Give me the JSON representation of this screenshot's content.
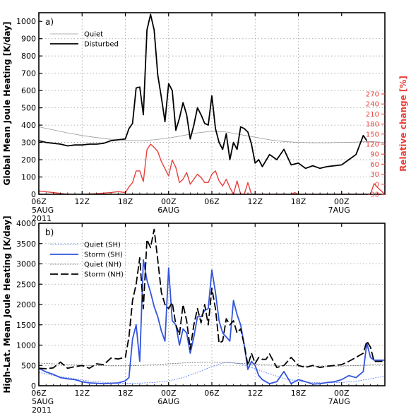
{
  "chart_data": [
    {
      "type": "line",
      "panel_label": "a)",
      "ylabel": "Global Mean Joule Heating [K/day]",
      "ylabel_right": "Relative change [%]",
      "x_tick_labels": [
        "06Z\n5AUG\n2011",
        "12Z",
        "18Z",
        "00Z\n6AUG",
        "06Z",
        "12Z",
        "18Z",
        "00Z\n7AUG"
      ],
      "x_range_hours": [
        6,
        54
      ],
      "ylim": [
        0,
        1050
      ],
      "y_ticks": [
        0,
        100,
        200,
        300,
        400,
        500,
        600,
        700,
        800,
        900,
        1000
      ],
      "right_ylim": [
        -30,
        270
      ],
      "right_ticks": [
        -30,
        0,
        30,
        60,
        90,
        120,
        150,
        180,
        210,
        240,
        270
      ],
      "grid": true,
      "legend_position": "top-left",
      "colors": {
        "quiet": "#888888",
        "disturbed": "#000000",
        "relative_change": "#e8403a"
      },
      "series": [
        {
          "name": "Quiet",
          "x": [
            6,
            8,
            10,
            12,
            14,
            16,
            18,
            20,
            22,
            24,
            26,
            28,
            30,
            32,
            34,
            36,
            38,
            40,
            42,
            44,
            46,
            48,
            50,
            52,
            54
          ],
          "y": [
            390,
            372,
            355,
            340,
            328,
            318,
            312,
            310,
            315,
            325,
            340,
            355,
            365,
            360,
            345,
            330,
            315,
            305,
            300,
            298,
            298,
            300,
            302,
            305,
            300
          ]
        },
        {
          "name": "Disturbed",
          "x": [
            6,
            7,
            8,
            9,
            10,
            11,
            12,
            13,
            14,
            15,
            16,
            17,
            18,
            18.5,
            19,
            19.5,
            20,
            20.5,
            21,
            21.5,
            22,
            22.5,
            23,
            23.5,
            24,
            24.5,
            25,
            25.5,
            26,
            26.5,
            27,
            27.5,
            28,
            28.5,
            29,
            29.5,
            30,
            30.5,
            31,
            31.5,
            32,
            32.5,
            33,
            33.5,
            34,
            34.5,
            35,
            35.5,
            36,
            36.5,
            37,
            38,
            39,
            40,
            41,
            42,
            43,
            44,
            45,
            46,
            47,
            48,
            49,
            50,
            51,
            51.5,
            52,
            52.5,
            53,
            53.5,
            54
          ],
          "y": [
            310,
            300,
            295,
            290,
            280,
            285,
            285,
            290,
            290,
            295,
            310,
            315,
            320,
            380,
            410,
            615,
            620,
            460,
            950,
            1040,
            950,
            690,
            560,
            420,
            640,
            600,
            370,
            440,
            530,
            460,
            320,
            400,
            500,
            460,
            410,
            400,
            570,
            380,
            300,
            260,
            350,
            200,
            300,
            260,
            390,
            380,
            360,
            290,
            180,
            200,
            160,
            230,
            200,
            260,
            170,
            180,
            150,
            165,
            150,
            160,
            165,
            170,
            200,
            230,
            340,
            310,
            270,
            0,
            0,
            0,
            0
          ],
          "note_trim": 66
        },
        {
          "name": "Relative change",
          "x": [
            6,
            8,
            10,
            12,
            14,
            16,
            17,
            18,
            18.5,
            19,
            19.5,
            20,
            20.5,
            21,
            21.5,
            22,
            22.5,
            23,
            24,
            24.5,
            25,
            25.5,
            26,
            26.5,
            27,
            27.5,
            28,
            28.5,
            29,
            29.5,
            30,
            30.5,
            31,
            31.5,
            32,
            32.5,
            33,
            33.5,
            34,
            34.5,
            35,
            35.5,
            36,
            40,
            40.5,
            41,
            41.5,
            42,
            50,
            52,
            52.5,
            53,
            53.5,
            54
          ],
          "y": [
            -20,
            -25,
            -30,
            -30,
            -28,
            -25,
            -22,
            -25,
            -8,
            5,
            40,
            40,
            8,
            103,
            120,
            110,
            98,
            68,
            25,
            72,
            50,
            5,
            15,
            35,
            0,
            15,
            30,
            20,
            5,
            5,
            30,
            40,
            10,
            -5,
            15,
            -10,
            -30,
            10,
            -30,
            -30,
            5,
            -30,
            -30,
            -30,
            -30,
            -30,
            -25,
            -30,
            -30,
            -30,
            2,
            -10,
            -20,
            -30
          ]
        }
      ]
    },
    {
      "type": "line",
      "panel_label": "b)",
      "ylabel": "High-Lat. Mean Joule Heating [K/day]",
      "x_tick_labels": [
        "06Z\n5AUG\n2011",
        "12Z",
        "18Z",
        "00Z\n6AUG",
        "06Z",
        "12Z",
        "18Z",
        "00Z\n7AUG"
      ],
      "x_range_hours": [
        6,
        54
      ],
      "ylim": [
        0,
        4000
      ],
      "y_ticks": [
        0,
        500,
        1000,
        1500,
        2000,
        2500,
        3000,
        3500,
        4000
      ],
      "grid": true,
      "legend_position": "top-left",
      "colors": {
        "quiet_sh": "#3355dd",
        "storm_sh": "#3355dd",
        "quiet_nh": "#666666",
        "storm_nh": "#000000"
      },
      "series": [
        {
          "name": "Quiet (SH)",
          "x": [
            6,
            8,
            10,
            12,
            14,
            16,
            18,
            20,
            22,
            24,
            26,
            28,
            30,
            32,
            34,
            36,
            38,
            40,
            42,
            44,
            46,
            48,
            50,
            52,
            54
          ],
          "y": [
            330,
            250,
            200,
            140,
            100,
            70,
            60,
            65,
            80,
            120,
            200,
            330,
            470,
            580,
            540,
            420,
            290,
            180,
            110,
            80,
            70,
            80,
            110,
            170,
            240
          ]
        },
        {
          "name": "Storm (SH)",
          "x": [
            6,
            7,
            8,
            9,
            10,
            11,
            12,
            13,
            14,
            15,
            16,
            17,
            18,
            18.5,
            19,
            19.5,
            20,
            20.5,
            21,
            21.5,
            22,
            22.5,
            23,
            23.5,
            24,
            24.5,
            25,
            25.5,
            26,
            26.5,
            27,
            27.5,
            28,
            28.5,
            29,
            29.5,
            30,
            30.5,
            31,
            31.5,
            32,
            32.5,
            33,
            33.5,
            34,
            34.5,
            35,
            35.5,
            36,
            36.5,
            37,
            37.5,
            38,
            39,
            40,
            41,
            42,
            43,
            44,
            45,
            46,
            47,
            48,
            49,
            50,
            51,
            51.5,
            52,
            52.5,
            53,
            53.5,
            54
          ],
          "y": [
            430,
            340,
            280,
            200,
            170,
            150,
            100,
            70,
            60,
            50,
            60,
            70,
            120,
            200,
            1150,
            1500,
            600,
            3100,
            2600,
            2300,
            1950,
            1700,
            1350,
            1100,
            2900,
            1600,
            1500,
            1000,
            1400,
            1300,
            800,
            1200,
            1700,
            1700,
            1850,
            1900,
            2850,
            2300,
            1600,
            1300,
            1200,
            1100,
            2100,
            1750,
            1500,
            1000,
            400,
            600,
            500,
            250,
            150,
            100,
            50,
            100,
            350,
            50,
            150,
            100,
            40,
            50,
            80,
            100,
            150,
            250,
            200,
            350,
            1050,
            700,
            630,
            630,
            630,
            630
          ]
        },
        {
          "name": "Quiet (NH)",
          "x": [
            6,
            8,
            10,
            12,
            14,
            16,
            18,
            20,
            22,
            24,
            26,
            28,
            30,
            32,
            34,
            36,
            38,
            40,
            42,
            44,
            46,
            48,
            50,
            52,
            54
          ],
          "y": [
            560,
            540,
            520,
            505,
            495,
            490,
            490,
            500,
            520,
            540,
            560,
            570,
            580,
            570,
            550,
            530,
            510,
            495,
            485,
            480,
            480,
            485,
            495,
            510,
            520
          ]
        },
        {
          "name": "Storm (NH)",
          "x": [
            6,
            7,
            8,
            9,
            10,
            11,
            12,
            13,
            14,
            15,
            16,
            17,
            18,
            18.5,
            19,
            19.5,
            20,
            20.5,
            21,
            21.5,
            22,
            22.5,
            23,
            23.5,
            24,
            24.5,
            25,
            25.5,
            26,
            26.5,
            27,
            27.5,
            28,
            28.5,
            29,
            29.5,
            30,
            30.5,
            31,
            31.5,
            32,
            32.5,
            33,
            33.5,
            34,
            34.5,
            35,
            35.5,
            36,
            36.5,
            37,
            37.5,
            38,
            39,
            40,
            41,
            42,
            43,
            44,
            45,
            46,
            47,
            48,
            49,
            50,
            51,
            51.5,
            52,
            52.5,
            53,
            53.5,
            54
          ],
          "y": [
            430,
            420,
            440,
            580,
            430,
            470,
            500,
            430,
            540,
            520,
            680,
            660,
            700,
            1200,
            2100,
            2500,
            3150,
            1900,
            3600,
            3400,
            3850,
            3100,
            2300,
            2000,
            1900,
            2050,
            1500,
            1250,
            2000,
            1600,
            900,
            1500,
            1900,
            1550,
            2000,
            1500,
            2400,
            1900,
            1050,
            1100,
            1650,
            1500,
            1600,
            1300,
            1400,
            1000,
            500,
            800,
            550,
            700,
            650,
            650,
            780,
            450,
            500,
            700,
            500,
            450,
            500,
            450,
            480,
            500,
            520,
            600,
            700,
            800,
            1100,
            950,
            600,
            600,
            600,
            600
          ]
        }
      ]
    }
  ]
}
